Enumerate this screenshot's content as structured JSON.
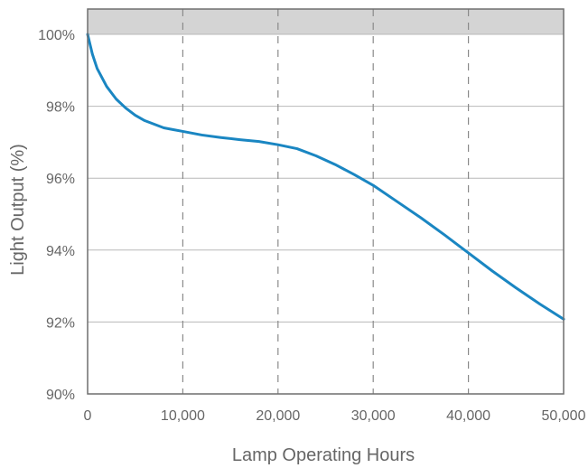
{
  "chart_data": {
    "type": "line",
    "xlabel": "Lamp Operating Hours",
    "ylabel": "Light Output (%)",
    "xlim": [
      0,
      50000
    ],
    "ylim": [
      90,
      100
    ],
    "x_ticks": [
      0,
      10000,
      20000,
      30000,
      40000,
      50000
    ],
    "x_tick_labels": [
      "0",
      "10,000",
      "20,000",
      "30,000",
      "40,000",
      "50,000"
    ],
    "y_ticks": [
      90,
      92,
      94,
      96,
      98,
      100
    ],
    "y_tick_labels": [
      "90%",
      "92%",
      "94%",
      "96%",
      "98%",
      "100%"
    ],
    "grid": {
      "horizontal": "solid",
      "vertical": "dashed"
    },
    "shaded_band_above_ylim": true,
    "line_color": "#1a86c2",
    "series": [
      {
        "x": [
          0,
          500,
          1000,
          2000,
          3000,
          4000,
          5000,
          6000,
          7000,
          8000,
          9000,
          10000,
          12000,
          14000,
          16000,
          18000,
          20000,
          22000,
          24000,
          26000,
          28000,
          30000,
          32500,
          35000,
          37500,
          40000,
          42500,
          45000,
          47500,
          50000
        ],
        "y": [
          100,
          99.45,
          99.05,
          98.55,
          98.2,
          97.95,
          97.75,
          97.6,
          97.5,
          97.4,
          97.35,
          97.3,
          97.2,
          97.13,
          97.07,
          97.02,
          96.93,
          96.82,
          96.62,
          96.38,
          96.1,
          95.8,
          95.35,
          94.9,
          94.42,
          93.92,
          93.42,
          92.95,
          92.5,
          92.08
        ]
      }
    ]
  }
}
